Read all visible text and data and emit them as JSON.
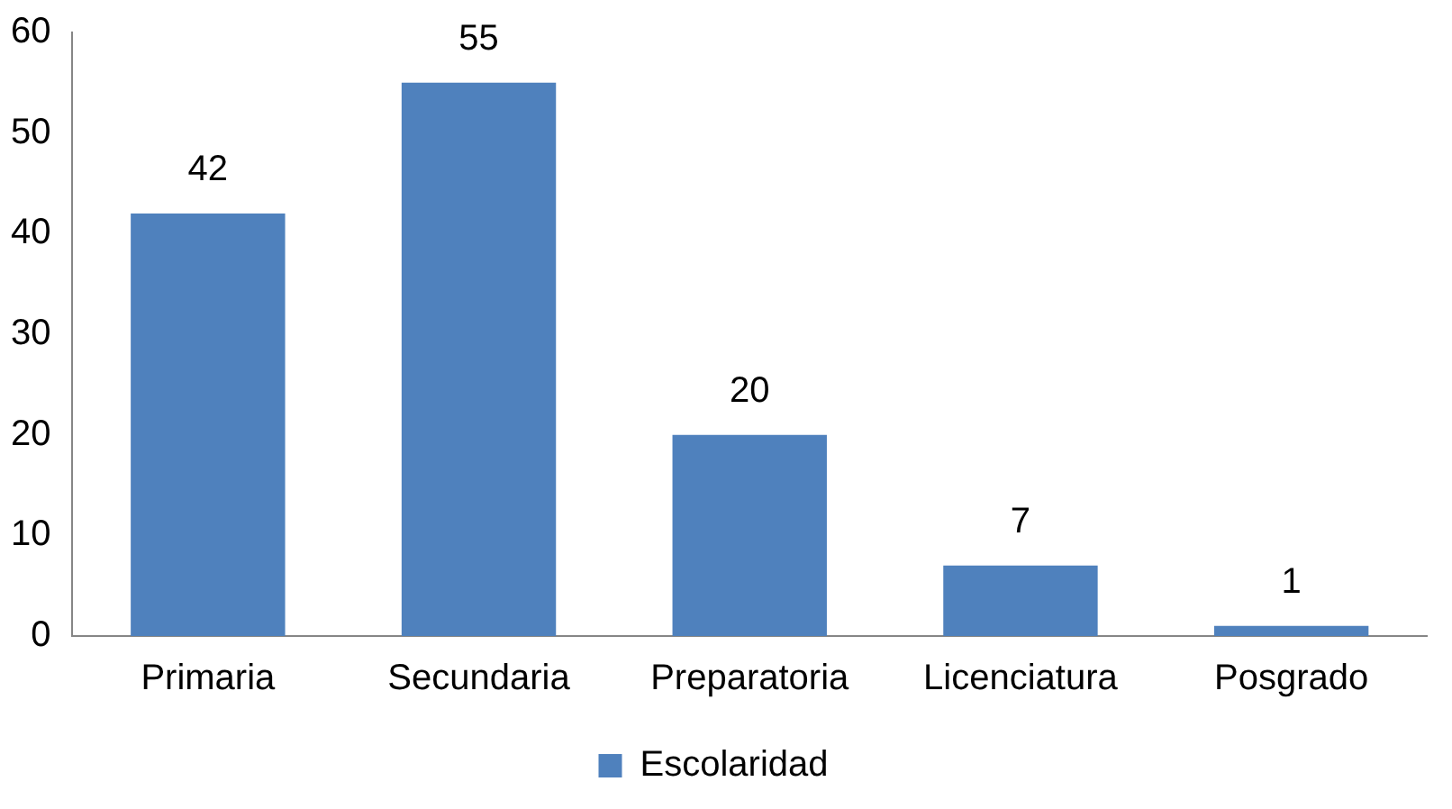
{
  "chart_data": {
    "type": "bar",
    "categories": [
      "Primaria",
      "Secundaria",
      "Preparatoria",
      "Licenciatura",
      "Posgrado"
    ],
    "series": [
      {
        "name": "Escolaridad",
        "color": "#4f81bd",
        "values": [
          42,
          55,
          20,
          7,
          1
        ]
      }
    ],
    "ylim": [
      0,
      60
    ],
    "yticks": [
      0,
      10,
      20,
      30,
      40,
      50,
      60
    ],
    "grid": false,
    "legend": "bottom",
    "data_labels": true
  }
}
